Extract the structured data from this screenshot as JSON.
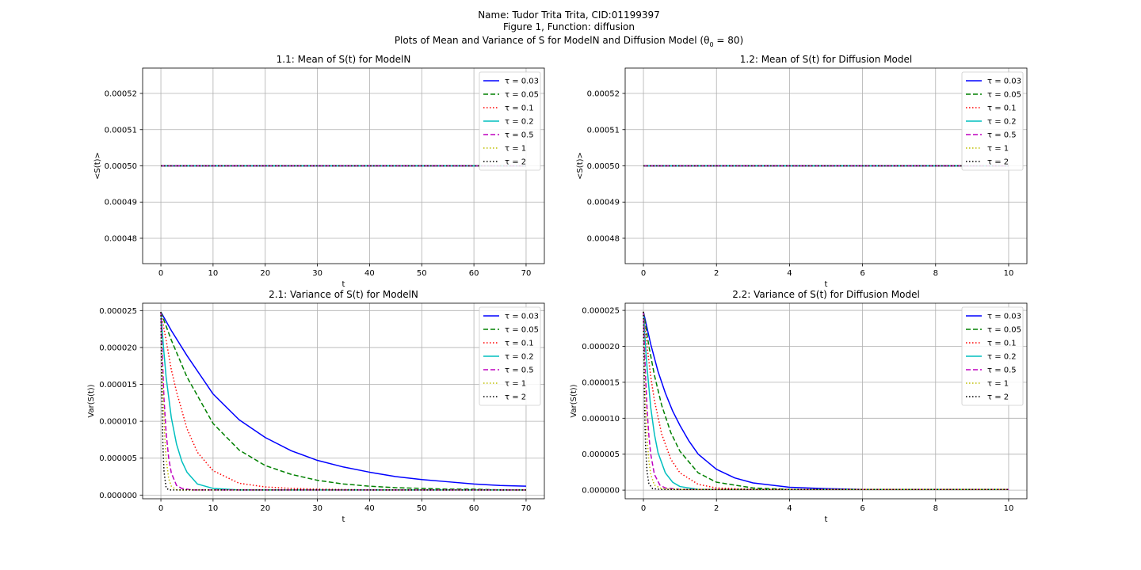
{
  "figure": {
    "title_line1": "Name: Tudor Trita Trita, CID:01199397",
    "title_line2": "Figure 1, Function: diffusion",
    "title_line3": "Plots of Mean and Variance of S for ModelN and Diffusion Model (θ",
    "title_line3_sub": "0",
    "title_line3_end": " = 80)"
  },
  "legend_entries": [
    {
      "label": "τ = 0.03",
      "color": "#0000ff",
      "dash": "solid"
    },
    {
      "label": "τ = 0.05",
      "color": "#008000",
      "dash": "dashed"
    },
    {
      "label": "τ = 0.1",
      "color": "#ff0000",
      "dash": "dotted"
    },
    {
      "label": "τ = 0.2",
      "color": "#00bfbf",
      "dash": "solid"
    },
    {
      "label": "τ = 0.5",
      "color": "#bf00bf",
      "dash": "dashed"
    },
    {
      "label": "τ = 1",
      "color": "#bfbf00",
      "dash": "dotted"
    },
    {
      "label": "τ = 2",
      "color": "#000000",
      "dash": "dotted"
    }
  ],
  "chart_data": [
    {
      "type": "line",
      "title": "1.1: Mean of S(t) for ModelN",
      "xlabel": "t",
      "ylabel": "<S(t)>",
      "xlim": [
        -3.5,
        73.5
      ],
      "ylim": [
        0.000473,
        0.000527
      ],
      "xticks": [
        0,
        10,
        20,
        30,
        40,
        50,
        60,
        70
      ],
      "yticks": [
        0.00048,
        0.00049,
        0.0005,
        0.00051,
        0.00052
      ],
      "ytick_labels": [
        "0.00048",
        "0.00049",
        "0.00050",
        "0.00051",
        "0.00052"
      ],
      "grid": true,
      "legend": "top-right",
      "series": [
        {
          "name": "τ = 0.03",
          "x": [
            0,
            70
          ],
          "y": [
            0.0005,
            0.0005
          ]
        },
        {
          "name": "τ = 0.05",
          "x": [
            0,
            70
          ],
          "y": [
            0.0005,
            0.0005
          ]
        },
        {
          "name": "τ = 0.1",
          "x": [
            0,
            70
          ],
          "y": [
            0.0005,
            0.0005
          ]
        },
        {
          "name": "τ = 0.2",
          "x": [
            0,
            70
          ],
          "y": [
            0.0005,
            0.0005
          ]
        },
        {
          "name": "τ = 0.5",
          "x": [
            0,
            70
          ],
          "y": [
            0.0005,
            0.0005
          ]
        },
        {
          "name": "τ = 1",
          "x": [
            0,
            70
          ],
          "y": [
            0.0005,
            0.0005
          ]
        },
        {
          "name": "τ = 2",
          "x": [
            0,
            70
          ],
          "y": [
            0.0005,
            0.0005
          ]
        }
      ]
    },
    {
      "type": "line",
      "title": "1.2: Mean of S(t) for Diffusion Model",
      "xlabel": "t",
      "ylabel": "<S(t)>",
      "xlim": [
        -0.5,
        10.5
      ],
      "ylim": [
        0.000473,
        0.000527
      ],
      "xticks": [
        0,
        2,
        4,
        6,
        8,
        10
      ],
      "yticks": [
        0.00048,
        0.00049,
        0.0005,
        0.00051,
        0.00052
      ],
      "ytick_labels": [
        "0.00048",
        "0.00049",
        "0.00050",
        "0.00051",
        "0.00052"
      ],
      "grid": true,
      "legend": "top-right",
      "series": [
        {
          "name": "τ = 0.03",
          "x": [
            0,
            10
          ],
          "y": [
            0.0005,
            0.0005
          ]
        },
        {
          "name": "τ = 0.05",
          "x": [
            0,
            10
          ],
          "y": [
            0.0005,
            0.0005
          ]
        },
        {
          "name": "τ = 0.1",
          "x": [
            0,
            10
          ],
          "y": [
            0.0005,
            0.0005
          ]
        },
        {
          "name": "τ = 0.2",
          "x": [
            0,
            10
          ],
          "y": [
            0.0005,
            0.0005
          ]
        },
        {
          "name": "τ = 0.5",
          "x": [
            0,
            10
          ],
          "y": [
            0.0005,
            0.0005
          ]
        },
        {
          "name": "τ = 1",
          "x": [
            0,
            10
          ],
          "y": [
            0.0005,
            0.0005
          ]
        },
        {
          "name": "τ = 2",
          "x": [
            0,
            10
          ],
          "y": [
            0.0005,
            0.0005
          ]
        }
      ]
    },
    {
      "type": "line",
      "title": "2.1: Variance of S(t) for ModelN",
      "xlabel": "t",
      "ylabel": "Var(S(t))",
      "xlim": [
        -3.5,
        73.5
      ],
      "ylim": [
        -5e-07,
        2.6e-05
      ],
      "xticks": [
        0,
        10,
        20,
        30,
        40,
        50,
        60,
        70
      ],
      "yticks": [
        0,
        5e-06,
        1e-05,
        1.5e-05,
        2e-05,
        2.5e-05
      ],
      "ytick_labels": [
        "0.000000",
        "0.000005",
        "0.000010",
        "0.000015",
        "0.000020",
        "0.000025"
      ],
      "grid": true,
      "legend": "top-right",
      "series": [
        {
          "name": "τ = 0.03",
          "x": [
            0,
            2,
            5,
            10,
            15,
            20,
            25,
            30,
            35,
            40,
            45,
            50,
            55,
            60,
            65,
            70
          ],
          "y": [
            2.48e-05,
            2.23e-05,
            1.89e-05,
            1.37e-05,
            1.02e-05,
            7.8e-06,
            6e-06,
            4.7e-06,
            3.8e-06,
            3.1e-06,
            2.5e-06,
            2.1e-06,
            1.8e-06,
            1.5e-06,
            1.3e-06,
            1.2e-06
          ]
        },
        {
          "name": "τ = 0.05",
          "x": [
            0,
            2,
            5,
            10,
            15,
            20,
            25,
            30,
            35,
            40,
            45,
            50,
            55,
            60,
            65,
            70
          ],
          "y": [
            2.48e-05,
            2.1e-05,
            1.6e-05,
            9.7e-06,
            6.1e-06,
            4e-06,
            2.8e-06,
            2e-06,
            1.5e-06,
            1.2e-06,
            1e-06,
            9e-07,
            8e-07,
            8e-07,
            7e-07,
            7e-07
          ]
        },
        {
          "name": "τ = 0.1",
          "x": [
            0,
            1,
            2,
            3,
            5,
            7,
            10,
            15,
            20,
            25,
            30,
            40,
            50,
            60,
            70
          ],
          "y": [
            2.48e-05,
            2.1e-05,
            1.7e-05,
            1.4e-05,
            9e-06,
            5.8e-06,
            3.3e-06,
            1.6e-06,
            1.1e-06,
            9e-07,
            8e-07,
            7e-07,
            7e-07,
            7e-07,
            7e-07
          ]
        },
        {
          "name": "τ = 0.2",
          "x": [
            0,
            0.5,
            1,
            2,
            3,
            4,
            5,
            7,
            10,
            15,
            20,
            30,
            40,
            50,
            60,
            70
          ],
          "y": [
            2.48e-05,
            2e-05,
            1.6e-05,
            1.05e-05,
            6.9e-06,
            4.6e-06,
            3.1e-06,
            1.5e-06,
            9e-07,
            7e-07,
            7e-07,
            7e-07,
            7e-07,
            7e-07,
            7e-07,
            7e-07
          ]
        },
        {
          "name": "τ = 0.5",
          "x": [
            0,
            0.3,
            0.6,
            1,
            1.5,
            2,
            3,
            4,
            6,
            10,
            20,
            40,
            70
          ],
          "y": [
            2.48e-05,
            1.85e-05,
            1.3e-05,
            8.5e-06,
            5e-06,
            3e-06,
            1.3e-06,
            9e-07,
            7e-07,
            7e-07,
            7e-07,
            7e-07,
            7e-07
          ]
        },
        {
          "name": "τ = 1",
          "x": [
            0,
            0.2,
            0.4,
            0.7,
            1,
            1.5,
            2,
            3,
            5,
            10,
            30,
            70
          ],
          "y": [
            2.48e-05,
            1.9e-05,
            1.4e-05,
            8.5e-06,
            5e-06,
            2.2e-06,
            1.2e-06,
            7e-07,
            7e-07,
            7e-07,
            7e-07,
            7e-07
          ]
        },
        {
          "name": "τ = 2",
          "x": [
            0,
            0.1,
            0.2,
            0.4,
            0.6,
            1,
            1.5,
            3,
            10,
            70
          ],
          "y": [
            2.48e-05,
            1.8e-05,
            1.3e-05,
            6.5e-06,
            3.2e-06,
            1e-06,
            7e-07,
            7e-07,
            7e-07,
            7e-07
          ]
        }
      ]
    },
    {
      "type": "line",
      "title": "2.2: Variance of S(t) for Diffusion Model",
      "xlabel": "t",
      "ylabel": "Var(S(t))",
      "xlim": [
        -0.5,
        10.5
      ],
      "ylim": [
        -1.2e-06,
        2.6e-05
      ],
      "xticks": [
        0,
        2,
        4,
        6,
        8,
        10
      ],
      "yticks": [
        0,
        5e-06,
        1e-05,
        1.5e-05,
        2e-05,
        2.5e-05
      ],
      "ytick_labels": [
        "0.000000",
        "0.000005",
        "0.000010",
        "0.000015",
        "0.000020",
        "0.000025"
      ],
      "grid": true,
      "legend": "top-right",
      "series": [
        {
          "name": "τ = 0.03",
          "x": [
            0,
            0.2,
            0.4,
            0.6,
            0.8,
            1,
            1.25,
            1.5,
            2,
            2.5,
            3,
            4,
            5,
            6,
            8,
            10
          ],
          "y": [
            2.48e-05,
            2.03e-05,
            1.65e-05,
            1.35e-05,
            1.1e-05,
            9e-06,
            6.8e-06,
            5e-06,
            2.9e-06,
            1.7e-06,
            1e-06,
            4e-07,
            2e-07,
            1e-07,
            1e-07,
            1e-07
          ]
        },
        {
          "name": "τ = 0.05",
          "x": [
            0,
            0.15,
            0.3,
            0.5,
            0.75,
            1,
            1.5,
            2,
            3,
            4,
            6,
            10
          ],
          "y": [
            2.48e-05,
            2e-05,
            1.6e-05,
            1.18e-05,
            8e-06,
            5.4e-06,
            2.4e-06,
            1.1e-06,
            3e-07,
            1e-07,
            1e-07,
            1e-07
          ]
        },
        {
          "name": "τ = 0.1",
          "x": [
            0,
            0.1,
            0.2,
            0.3,
            0.5,
            0.75,
            1,
            1.5,
            2,
            3,
            5,
            10
          ],
          "y": [
            2.48e-05,
            2e-05,
            1.58e-05,
            1.25e-05,
            7.8e-06,
            4.3e-06,
            2.4e-06,
            8e-07,
            3e-07,
            1e-07,
            1e-07,
            1e-07
          ]
        },
        {
          "name": "τ = 0.2",
          "x": [
            0,
            0.05,
            0.1,
            0.2,
            0.3,
            0.4,
            0.6,
            0.8,
            1,
            1.5,
            3,
            10
          ],
          "y": [
            2.48e-05,
            2.05e-05,
            1.7e-05,
            1.15e-05,
            7.8e-06,
            5.2e-06,
            2.4e-06,
            1.1e-06,
            5e-07,
            1e-07,
            1e-07,
            1e-07
          ]
        },
        {
          "name": "τ = 0.5",
          "x": [
            0,
            0.03,
            0.06,
            0.1,
            0.15,
            0.2,
            0.3,
            0.45,
            0.6,
            1,
            3,
            10
          ],
          "y": [
            2.48e-05,
            1.95e-05,
            1.55e-05,
            1.13e-05,
            7.5e-06,
            5e-06,
            2.2e-06,
            7e-07,
            3e-07,
            1e-07,
            1e-07,
            1e-07
          ]
        },
        {
          "name": "τ = 1",
          "x": [
            0,
            0.02,
            0.04,
            0.06,
            0.1,
            0.15,
            0.2,
            0.3,
            0.5,
            1,
            10
          ],
          "y": [
            2.48e-05,
            1.95e-05,
            1.5e-05,
            1.18e-05,
            7.2e-06,
            4e-06,
            2.2e-06,
            7e-07,
            2e-07,
            1e-07,
            1e-07
          ]
        },
        {
          "name": "τ = 2",
          "x": [
            0,
            0.01,
            0.02,
            0.04,
            0.06,
            0.1,
            0.15,
            0.25,
            0.5,
            10
          ],
          "y": [
            2.48e-05,
            1.95e-05,
            1.55e-05,
            9.5e-06,
            6e-06,
            2.5e-06,
            9e-07,
            2e-07,
            1e-07,
            1e-07
          ]
        }
      ]
    }
  ]
}
